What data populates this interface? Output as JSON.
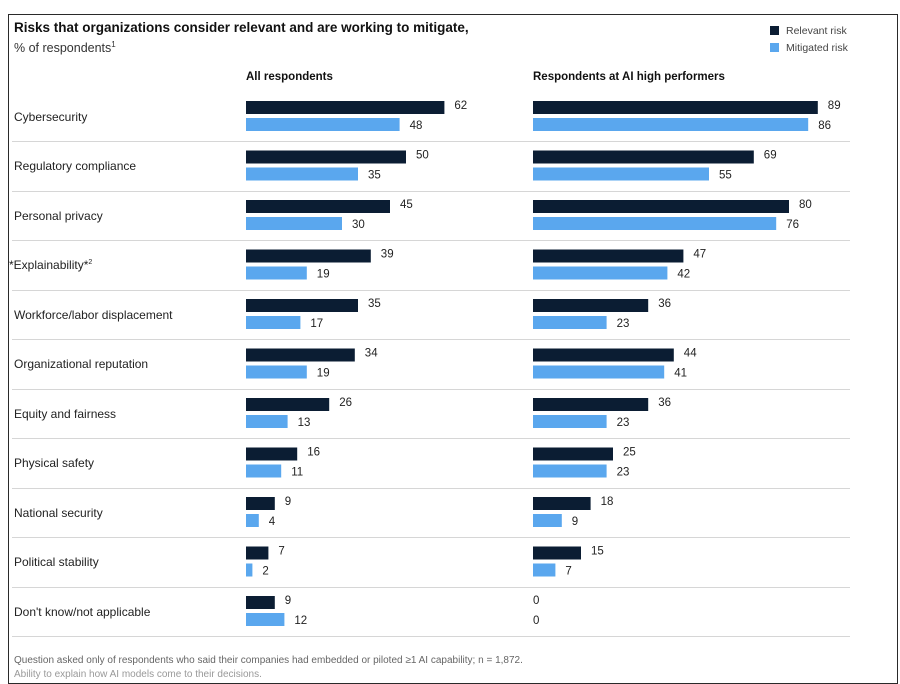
{
  "chart_data": {
    "type": "bar",
    "title": "Risks that organizations consider relevant and are working to mitigate,",
    "subtitle": "% of respondents",
    "subtitle_footnote_mark": "1",
    "legend": [
      {
        "name": "Relevant risk",
        "color": "#0b1d33"
      },
      {
        "name": "Mitigated risk",
        "color": "#5aa7ee"
      }
    ],
    "legend_position": "top-right",
    "categories": [
      "Cybersecurity",
      "Regulatory compliance",
      "Personal privacy",
      "Explainability",
      "Workforce/labor displacement",
      "Organizational reputation",
      "Equity and fairness",
      "Physical safety",
      "National security",
      "Political stability",
      "Don't know/not applicable"
    ],
    "panels": [
      {
        "title": "All respondents",
        "series": [
          {
            "name": "Relevant risk",
            "values": [
              62,
              50,
              45,
              39,
              35,
              34,
              26,
              16,
              9,
              7,
              9
            ]
          },
          {
            "name": "Mitigated risk",
            "values": [
              48,
              35,
              30,
              19,
              17,
              19,
              13,
              11,
              4,
              2,
              12
            ]
          }
        ]
      },
      {
        "title": "Respondents at AI high performers",
        "series": [
          {
            "name": "Relevant risk",
            "values": [
              89,
              69,
              80,
              47,
              36,
              44,
              36,
              25,
              18,
              15,
              0
            ]
          },
          {
            "name": "Mitigated risk",
            "values": [
              86,
              55,
              76,
              42,
              23,
              41,
              23,
              23,
              9,
              7,
              0
            ]
          }
        ]
      }
    ],
    "xlim": [
      0,
      100
    ]
  },
  "labels": {
    "explainability_prefix": "*",
    "explainability_text": "Explainability",
    "explainability_suffix": "*",
    "explainability_mark": "2"
  },
  "footnotes": [
    "Question asked only of respondents who said their companies had embedded or piloted ≥1 AI capability; n = 1,872.",
    "Ability to explain how AI models come to their decisions."
  ]
}
